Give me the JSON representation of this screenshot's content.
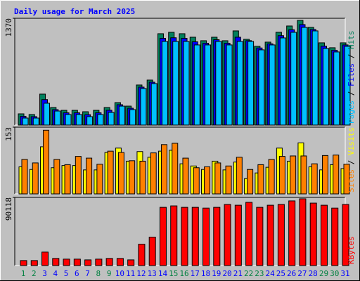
{
  "title": "Daily usage for March 2025",
  "separator": "/",
  "chart_data": [
    {
      "type": "bar",
      "ylim": [
        0,
        1370
      ],
      "yticks": [
        1370
      ],
      "series": [
        {
          "name": "Hits",
          "color": "#00805c",
          "values": [
            144,
            135,
            397,
            225,
            189,
            189,
            171,
            189,
            225,
            288,
            243,
            514,
            577,
            1172,
            1190,
            1172,
            1127,
            1082,
            1127,
            1082,
            1208,
            1100,
            1010,
            1064,
            1190,
            1271,
            1343,
            1253,
            1055,
            992,
            1055
          ]
        },
        {
          "name": "Files",
          "color": "#0000ff",
          "values": [
            112,
            108,
            327,
            198,
            157,
            157,
            133,
            157,
            190,
            261,
            216,
            487,
            550,
            1113,
            1120,
            1113,
            1068,
            1050,
            1095,
            1050,
            1127,
            1083,
            989,
            1042,
            1147,
            1223,
            1289,
            1226,
            1012,
            960,
            1028
          ]
        },
        {
          "name": "Pages",
          "color": "#00c0ff",
          "values": [
            90,
            90,
            280,
            180,
            135,
            135,
            108,
            135,
            162,
            243,
            198,
            469,
            532,
            1073,
            1073,
            1073,
            1028,
            1028,
            1073,
            1028,
            1073,
            1073,
            965,
            1028,
            1118,
            1190,
            1253,
            1208,
            983,
            938,
            1010
          ]
        }
      ]
    },
    {
      "type": "bar",
      "ylim": [
        0,
        153
      ],
      "yticks": [
        153
      ],
      "series": [
        {
          "name": "Visits",
          "color": "#ffff00",
          "values": [
            62,
            56,
            108,
            60,
            65,
            65,
            55,
            55,
            95,
            105,
            75,
            97,
            84,
            98,
            100,
            69,
            64,
            56,
            75,
            55,
            73,
            35,
            48,
            61,
            105,
            75,
            117,
            62,
            55,
            67,
            58
          ]
        },
        {
          "name": "Sites",
          "color": "#ff8000",
          "values": [
            79,
            71,
            146,
            79,
            67,
            86,
            82,
            68,
            98,
            95,
            76,
            75,
            94,
            113,
            116,
            82,
            60,
            62,
            71,
            64,
            84,
            56,
            67,
            79,
            86,
            87,
            87,
            69,
            88,
            89,
            68
          ]
        }
      ]
    },
    {
      "type": "bar",
      "ylim": [
        0,
        90118
      ],
      "yticks": [
        90118
      ],
      "categories": [
        "1",
        "2",
        "3",
        "4",
        "5",
        "6",
        "7",
        "8",
        "9",
        "10",
        "11",
        "12",
        "13",
        "14",
        "15",
        "16",
        "17",
        "18",
        "19",
        "20",
        "21",
        "22",
        "23",
        "24",
        "25",
        "26",
        "27",
        "28",
        "29",
        "30",
        "31"
      ],
      "category_colors": [
        "#008040",
        "#008040",
        "#0000ff",
        "#0000ff",
        "#0000ff",
        "#0000ff",
        "#0000ff",
        "#008040",
        "#008040",
        "#0000ff",
        "#0000ff",
        "#0000ff",
        "#0000ff",
        "#0000ff",
        "#008040",
        "#008040",
        "#0000ff",
        "#0000ff",
        "#0000ff",
        "#0000ff",
        "#0000ff",
        "#008040",
        "#008040",
        "#0000ff",
        "#0000ff",
        "#0000ff",
        "#0000ff",
        "#0000ff",
        "#008040",
        "#008040",
        "#0000ff"
      ],
      "series": [
        {
          "name": "KBytes",
          "color": "#ff0000",
          "values": [
            6600,
            6600,
            17800,
            9400,
            8500,
            8500,
            7500,
            8500,
            9400,
            9400,
            7500,
            28200,
            37600,
            77000,
            78900,
            77000,
            77000,
            76000,
            77000,
            80800,
            79800,
            83600,
            77000,
            79800,
            80800,
            85500,
            88300,
            82600,
            79800,
            76000,
            80800
          ]
        }
      ]
    }
  ]
}
